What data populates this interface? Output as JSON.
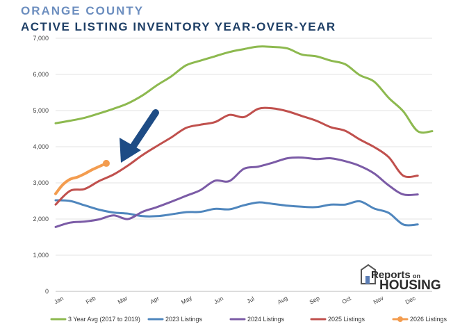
{
  "header": {
    "county": "ORANGE COUNTY",
    "title": "ACTIVE LISTING INVENTORY YEAR-OVER-YEAR"
  },
  "brand": {
    "line1": "Reports",
    "line1_suffix": "on",
    "line2": "HOUSING"
  },
  "chart_data": {
    "type": "line",
    "title": "ACTIVE LISTING INVENTORY YEAR-OVER-YEAR",
    "subtitle": "ORANGE COUNTY",
    "xlabel": "",
    "ylabel": "",
    "ylim": [
      0,
      7000
    ],
    "yticks": [
      0,
      1000,
      2000,
      3000,
      4000,
      5000,
      6000,
      7000
    ],
    "ytick_labels": [
      "0",
      "1,000",
      "2,000",
      "3,000",
      "4,000",
      "5,000",
      "6,000",
      "7,000"
    ],
    "categories": [
      "Jan",
      "Feb",
      "Mar",
      "Apr",
      "May",
      "Jun",
      "Jul",
      "Aug",
      "Sep",
      "Oct",
      "Nov",
      "Dec"
    ],
    "x_range": [
      1,
      53
    ],
    "grid": true,
    "legend_position": "bottom",
    "annotation": "arrow pointing to latest 2026 Listings value",
    "series": [
      {
        "name": "3 Year Avg (2017 to 2019)",
        "color": "#8db94f",
        "x": [
          1,
          3,
          5,
          7,
          9,
          11,
          13,
          15,
          17,
          19,
          21,
          23,
          25,
          27,
          29,
          31,
          33,
          35,
          37,
          39,
          41,
          43,
          45,
          47,
          49,
          51,
          53
        ],
        "values": [
          4650,
          4720,
          4800,
          4920,
          5050,
          5200,
          5420,
          5700,
          5950,
          6250,
          6380,
          6500,
          6620,
          6700,
          6770,
          6760,
          6720,
          6550,
          6500,
          6380,
          6280,
          5980,
          5800,
          5350,
          4980,
          4430,
          4430
        ]
      },
      {
        "name": "2023 Listings",
        "color": "#4f86bd",
        "x": [
          1,
          3,
          5,
          7,
          9,
          11,
          13,
          15,
          17,
          19,
          21,
          23,
          25,
          27,
          29,
          31,
          33,
          35,
          37,
          39,
          41,
          43,
          45,
          47,
          49,
          51
        ],
        "values": [
          2520,
          2500,
          2380,
          2260,
          2180,
          2150,
          2080,
          2080,
          2130,
          2190,
          2200,
          2280,
          2270,
          2380,
          2460,
          2420,
          2370,
          2340,
          2330,
          2400,
          2400,
          2490,
          2290,
          2170,
          1850,
          1850
        ]
      },
      {
        "name": "2024 Listings",
        "color": "#7b5ba6",
        "x": [
          1,
          3,
          5,
          7,
          9,
          11,
          13,
          15,
          17,
          19,
          21,
          23,
          25,
          27,
          29,
          31,
          33,
          35,
          37,
          39,
          41,
          43,
          45,
          47,
          49,
          51
        ],
        "values": [
          1780,
          1900,
          1930,
          1990,
          2100,
          2000,
          2200,
          2330,
          2480,
          2640,
          2800,
          3060,
          3050,
          3390,
          3450,
          3560,
          3680,
          3700,
          3660,
          3680,
          3600,
          3470,
          3260,
          2930,
          2680,
          2680
        ]
      },
      {
        "name": "2025 Listings",
        "color": "#c0504d",
        "x": [
          1,
          3,
          5,
          7,
          9,
          11,
          13,
          15,
          17,
          19,
          21,
          23,
          25,
          27,
          29,
          31,
          33,
          35,
          37,
          39,
          41,
          43,
          45,
          47,
          49,
          51
        ],
        "values": [
          2400,
          2780,
          2830,
          3050,
          3230,
          3480,
          3770,
          4020,
          4260,
          4520,
          4610,
          4680,
          4880,
          4820,
          5050,
          5060,
          4980,
          4850,
          4720,
          4540,
          4440,
          4200,
          3990,
          3710,
          3200,
          3200
        ]
      },
      {
        "name": "2026 Listings",
        "color": "#f39c4f",
        "x": [
          1,
          2,
          3,
          4,
          5,
          6,
          7,
          8
        ],
        "values": [
          2700,
          2950,
          3100,
          3160,
          3250,
          3360,
          3450,
          3540
        ]
      }
    ]
  }
}
